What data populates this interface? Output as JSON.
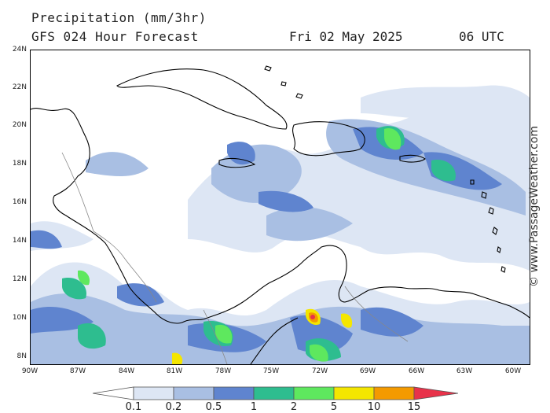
{
  "title": {
    "line1": "Precipitation (mm/3hr)",
    "line2": "GFS 024 Hour Forecast",
    "date": "Fri 02 May 2025",
    "time": "06 UTC"
  },
  "credit": "© www.PassageWeather.com",
  "lat_labels": [
    "24N",
    "22N",
    "20N",
    "18N",
    "16N",
    "14N",
    "12N",
    "10N",
    "8N"
  ],
  "lon_labels": [
    "90W",
    "87W",
    "84W",
    "81W",
    "78W",
    "75W",
    "72W",
    "69W",
    "66W",
    "63W",
    "60W"
  ],
  "legend": {
    "labels": [
      "0.1",
      "0.2",
      "0.5",
      "1",
      "2",
      "5",
      "10",
      "15"
    ],
    "colors": [
      "#ffffff",
      "#dde6f4",
      "#a9bfe3",
      "#5f84cf",
      "#2ebd8f",
      "#5ee85e",
      "#f4e600",
      "#f49a00",
      "#e8324a"
    ]
  },
  "chart_data": {
    "type": "heatmap",
    "title": "Precipitation (mm/3hr)",
    "subtitle": "GFS 024 Hour Forecast",
    "lat_range": [
      7.5,
      24
    ],
    "lon_range": [
      -90,
      -59
    ],
    "legend_thresholds_mm": [
      0.1,
      0.2,
      0.5,
      1,
      2,
      5,
      10,
      15
    ]
  }
}
